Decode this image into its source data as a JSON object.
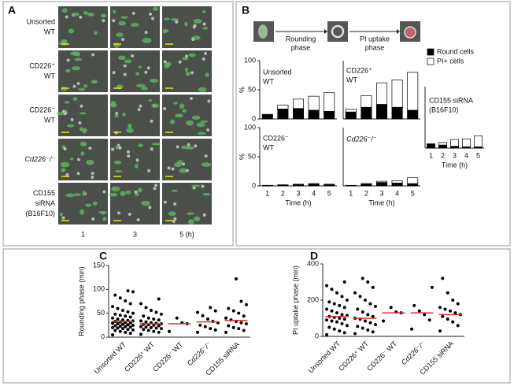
{
  "panel_labels": [
    "A",
    "B",
    "C",
    "D"
  ],
  "panel_a": {
    "rows": [
      [
        "Unsorted",
        "WT"
      ],
      [
        "CD226⁺",
        "WT"
      ],
      [
        "CD226⁻",
        "WT"
      ],
      [
        "Cd226⁻/⁻"
      ],
      [
        "CD155",
        "siRNA",
        "(B16F10)"
      ]
    ],
    "columns": [
      "1",
      "3",
      "5 (h)"
    ]
  },
  "panel_b_diagram": {
    "steps": [
      [
        "Rounding",
        "phase"
      ],
      [
        "PI uptake",
        "phase"
      ]
    ]
  },
  "chart_data": [
    {
      "type": "stacked_bar",
      "title": [
        "Unsorted",
        "WT"
      ],
      "y_label": "%",
      "ylim": [
        0,
        100
      ],
      "yticks": [
        0,
        50,
        100
      ],
      "series": [
        {
          "name": "Round cells",
          "color": "#000000",
          "values": [
            8,
            17,
            18,
            15,
            13
          ]
        },
        {
          "name": "PI+ cells",
          "color": "#ffffff",
          "values": [
            0,
            7,
            16,
            24,
            32
          ]
        }
      ]
    },
    {
      "type": "stacked_bar",
      "title": [
        "CD226⁺",
        "WT"
      ],
      "ylim": [
        0,
        100
      ],
      "series": [
        {
          "name": "Round cells",
          "color": "#000000",
          "values": [
            12,
            20,
            25,
            20,
            15
          ]
        },
        {
          "name": "PI+ cells",
          "color": "#ffffff",
          "values": [
            5,
            20,
            37,
            47,
            65
          ]
        }
      ]
    },
    {
      "type": "stacked_bar",
      "title": [
        "CD155 siRNA",
        "(B16F10)"
      ],
      "x_label": "Time (h)",
      "categories": [
        "1",
        "2",
        "3",
        "4",
        "5"
      ],
      "ylim": [
        0,
        100
      ],
      "series": [
        {
          "name": "Round cells",
          "color": "#000000",
          "values": [
            7,
            5,
            3,
            2,
            2
          ]
        },
        {
          "name": "PI+ cells",
          "color": "#ffffff",
          "values": [
            0,
            4,
            11,
            13,
            18
          ]
        }
      ]
    },
    {
      "type": "stacked_bar",
      "title": [
        "CD226⁻",
        "WT"
      ],
      "y_label": "%",
      "x_label": "Time (h)",
      "categories": [
        "1",
        "2",
        "3",
        "4",
        "5"
      ],
      "ylim": [
        0,
        100
      ],
      "yticks": [
        0,
        50,
        100
      ],
      "series": [
        {
          "name": "Round cells",
          "color": "#000000",
          "values": [
            1,
            2,
            3,
            3,
            2
          ]
        },
        {
          "name": "PI+ cells",
          "color": "#ffffff",
          "values": [
            0,
            0,
            0,
            1,
            1
          ]
        }
      ]
    },
    {
      "type": "stacked_bar",
      "title": [
        "Cd226⁻/⁻"
      ],
      "x_label": "Time (h)",
      "categories": [
        "1",
        "2",
        "3",
        "4",
        "5"
      ],
      "ylim": [
        0,
        100
      ],
      "series": [
        {
          "name": "Round cells",
          "color": "#000000",
          "values": [
            1,
            3,
            6,
            5,
            4
          ]
        },
        {
          "name": "PI+ cells",
          "color": "#ffffff",
          "values": [
            0,
            1,
            2,
            4,
            10
          ]
        }
      ]
    },
    {
      "type": "strip",
      "y_label": "Rounding phase (min)",
      "ylim": [
        0,
        150
      ],
      "yticks": [
        0,
        50,
        100,
        150
      ],
      "categories": [
        "Unsorted WT",
        "CD226⁺ WT",
        "CD226⁻ WT",
        "Cd226⁻/⁻",
        "CD155 siRNA"
      ],
      "median_color": "#e03030",
      "medians": [
        33,
        28,
        28,
        32,
        35
      ],
      "values": [
        [
          5,
          8,
          10,
          12,
          14,
          15,
          16,
          18,
          19,
          20,
          21,
          22,
          23,
          24,
          25,
          26,
          27,
          28,
          29,
          30,
          31,
          32,
          33,
          34,
          35,
          36,
          38,
          40,
          42,
          44,
          46,
          48,
          50,
          53,
          56,
          60,
          64,
          70,
          76,
          82,
          88,
          95,
          97
        ],
        [
          6,
          10,
          12,
          14,
          16,
          18,
          19,
          20,
          21,
          22,
          24,
          25,
          26,
          27,
          28,
          29,
          30,
          32,
          34,
          36,
          38,
          40,
          44,
          48,
          52,
          56,
          62,
          70,
          80
        ],
        [
          12,
          28,
          30,
          40
        ],
        [
          10,
          15,
          18,
          22,
          25,
          30,
          33,
          38,
          45,
          52,
          55,
          62
        ],
        [
          10,
          14,
          18,
          20,
          24,
          28,
          30,
          33,
          36,
          40,
          44,
          50,
          55,
          60,
          68,
          75,
          122
        ]
      ]
    },
    {
      "type": "strip",
      "y_label": "PI uptake phase (min)",
      "ylim": [
        0,
        400
      ],
      "yticks": [
        0,
        200,
        400
      ],
      "categories": [
        "Unsorted WT",
        "CD226⁺ WT",
        "CD226⁻ WT",
        "Cd226⁻/⁻",
        "CD155 siRNA"
      ],
      "median_color": "#e03030",
      "medians": [
        110,
        100,
        130,
        130,
        120
      ],
      "values": [
        [
          10,
          20,
          30,
          40,
          50,
          60,
          70,
          80,
          85,
          90,
          95,
          100,
          105,
          110,
          115,
          120,
          130,
          140,
          150,
          160,
          170,
          180,
          190,
          200,
          220,
          240,
          260,
          280,
          300
        ],
        [
          15,
          25,
          35,
          45,
          55,
          65,
          75,
          85,
          95,
          100,
          110,
          120,
          135,
          150,
          165,
          180,
          200,
          220,
          240,
          270,
          300,
          320
        ],
        [
          85,
          130,
          135,
          160
        ],
        [
          40,
          90,
          120,
          140,
          170,
          270
        ],
        [
          30,
          60,
          80,
          95,
          110,
          120,
          130,
          140,
          150,
          160,
          180,
          200,
          240,
          320
        ]
      ]
    }
  ]
}
